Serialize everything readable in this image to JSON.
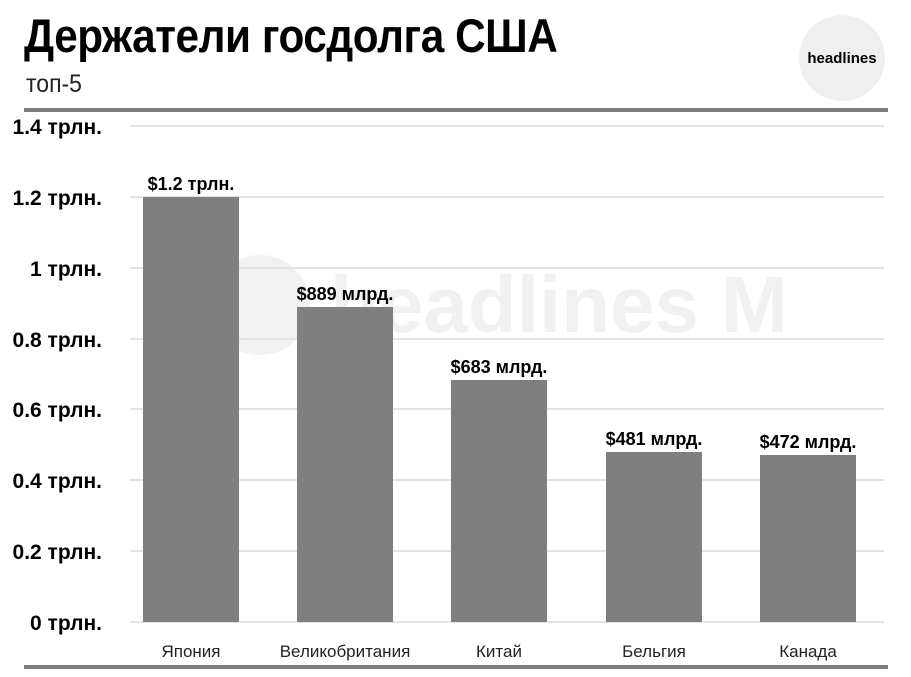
{
  "header": {
    "title": "Держатели госдолга США",
    "subtitle": "топ-5",
    "logo_text": "headlines"
  },
  "watermark": {
    "text": "headlines M"
  },
  "colors": {
    "bar": "#7f7f7f",
    "rule": "#7b7b80",
    "grid": "#e3e3e3",
    "logo_bg": "#efefef"
  },
  "axis": {
    "yticks": [
      "0 трлн.",
      "0.2 трлн.",
      "0.4 трлн.",
      "0.6 трлн.",
      "0.8 трлн.",
      "1 трлн.",
      "1.2 трлн.",
      "1.4 трлн."
    ]
  },
  "bars": [
    {
      "category": "Япония",
      "label": "$1.2 трлн."
    },
    {
      "category": "Великобритания",
      "label": "$889 млрд."
    },
    {
      "category": "Китай",
      "label": "$683 млрд."
    },
    {
      "category": "Бельгия",
      "label": "$481 млрд."
    },
    {
      "category": "Канада",
      "label": "$472 млрд."
    }
  ],
  "chart_data": {
    "type": "bar",
    "title": "Держатели госдолга США",
    "subtitle": "топ-5",
    "categories": [
      "Япония",
      "Великобритания",
      "Китай",
      "Бельгия",
      "Канада"
    ],
    "values": [
      1.2,
      0.889,
      0.683,
      0.481,
      0.472
    ],
    "value_labels": [
      "$1.2 трлн.",
      "$889 млрд.",
      "$683 млрд.",
      "$481 млрд.",
      "$472 млрд."
    ],
    "unit": "трлн. USD",
    "xlabel": "",
    "ylabel": "",
    "ylim": [
      0,
      1.4
    ],
    "yticks": [
      0,
      0.2,
      0.4,
      0.6,
      0.8,
      1.0,
      1.2,
      1.4
    ],
    "ytick_labels": [
      "0 трлн.",
      "0.2 трлн.",
      "0.4 трлн.",
      "0.6 трлн.",
      "0.8 трлн.",
      "1 трлн.",
      "1.2 трлн.",
      "1.4 трлн."
    ],
    "grid": true,
    "legend": null
  }
}
